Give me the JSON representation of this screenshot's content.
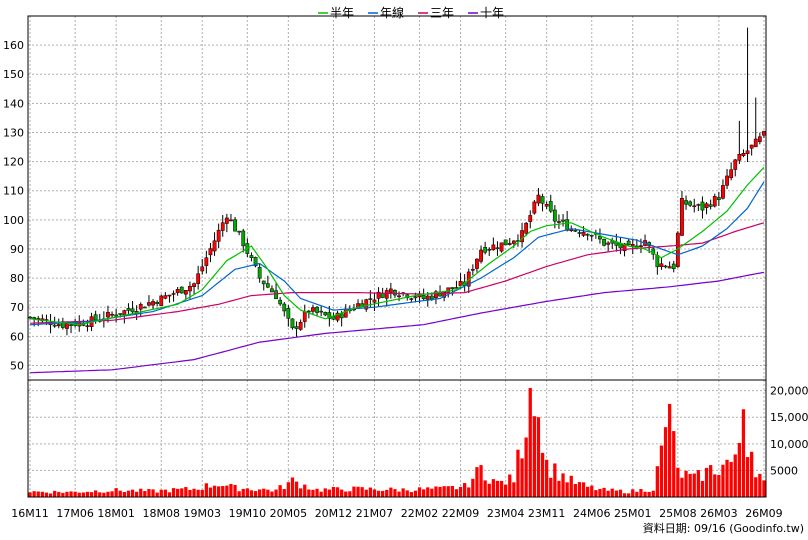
{
  "legend": [
    {
      "label": "半年",
      "color": "#00c000"
    },
    {
      "label": "年線",
      "color": "#0066cc"
    },
    {
      "label": "三年",
      "color": "#cc0066"
    },
    {
      "label": "十年",
      "color": "#7700cc"
    }
  ],
  "source_note": "資料日期: 09/16 (Goodinfo.tw)",
  "colors": {
    "up_candle": "#ff0000",
    "down_candle": "#00aa00",
    "volume_bar": "#ff0000",
    "grid": "#b0b0b0",
    "frame": "#000000"
  },
  "chart_data": [
    {
      "type": "candlestick",
      "title": "",
      "ylim": [
        45,
        170
      ],
      "yticks": [
        50,
        60,
        70,
        80,
        90,
        100,
        110,
        120,
        130,
        140,
        150,
        160
      ],
      "grid": true,
      "legend_position": "top-center",
      "x": [
        "16M11",
        "17M06",
        "18M01",
        "18M08",
        "19M03",
        "19M10",
        "20M05",
        "20M12",
        "21M07",
        "22M02",
        "22M09",
        "23M04",
        "23M11",
        "24M06",
        "25M01",
        "25M08",
        "26M03",
        "26M09"
      ],
      "price_keyframes": [
        [
          0,
          66.5
        ],
        [
          8,
          64
        ],
        [
          14,
          65
        ],
        [
          24,
          69
        ],
        [
          32,
          73
        ],
        [
          40,
          78
        ],
        [
          44,
          90
        ],
        [
          48,
          102
        ],
        [
          52,
          92
        ],
        [
          56,
          80
        ],
        [
          60,
          74
        ],
        [
          64,
          62
        ],
        [
          68,
          69
        ],
        [
          74,
          66
        ],
        [
          80,
          71
        ],
        [
          88,
          76
        ],
        [
          96,
          73
        ],
        [
          106,
          78
        ],
        [
          110,
          90
        ],
        [
          116,
          92
        ],
        [
          120,
          95
        ],
        [
          124,
          108
        ],
        [
          128,
          100
        ],
        [
          132,
          97
        ],
        [
          136,
          96
        ],
        [
          140,
          92
        ],
        [
          146,
          90
        ],
        [
          150,
          93
        ],
        [
          153,
          85
        ],
        [
          157,
          84
        ],
        [
          159,
          106
        ],
        [
          164,
          104
        ],
        [
          168,
          108
        ],
        [
          172,
          120
        ],
        [
          176,
          125
        ],
        [
          179,
          129
        ]
      ],
      "ma_half_year_keyframes": [
        [
          0,
          66
        ],
        [
          12,
          64
        ],
        [
          24,
          67.5
        ],
        [
          36,
          71
        ],
        [
          42,
          76
        ],
        [
          48,
          86
        ],
        [
          54,
          91
        ],
        [
          58,
          83
        ],
        [
          62,
          74
        ],
        [
          66,
          69
        ],
        [
          72,
          66
        ],
        [
          80,
          70
        ],
        [
          94,
          74
        ],
        [
          104,
          76
        ],
        [
          112,
          85
        ],
        [
          118,
          91
        ],
        [
          122,
          96
        ],
        [
          126,
          98
        ],
        [
          132,
          99
        ],
        [
          140,
          94
        ],
        [
          146,
          91
        ],
        [
          150,
          90
        ],
        [
          154,
          87
        ],
        [
          158,
          90
        ],
        [
          164,
          96
        ],
        [
          170,
          103
        ],
        [
          175,
          112
        ],
        [
          179,
          118
        ]
      ],
      "ma_year_keyframes": [
        [
          0,
          64
        ],
        [
          14,
          65
        ],
        [
          30,
          68.5
        ],
        [
          42,
          74
        ],
        [
          50,
          83
        ],
        [
          56,
          85
        ],
        [
          62,
          79
        ],
        [
          66,
          73
        ],
        [
          74,
          69
        ],
        [
          84,
          70
        ],
        [
          100,
          73
        ],
        [
          110,
          80
        ],
        [
          118,
          87
        ],
        [
          124,
          94
        ],
        [
          132,
          97
        ],
        [
          140,
          95
        ],
        [
          148,
          93
        ],
        [
          154,
          90
        ],
        [
          158,
          88
        ],
        [
          164,
          91
        ],
        [
          170,
          97
        ],
        [
          175,
          104
        ],
        [
          179,
          113
        ]
      ],
      "ma_three_year_keyframes": [
        [
          0,
          64.5
        ],
        [
          20,
          65.5
        ],
        [
          36,
          68.5
        ],
        [
          46,
          71
        ],
        [
          54,
          74
        ],
        [
          64,
          75
        ],
        [
          80,
          75
        ],
        [
          96,
          74.5
        ],
        [
          106,
          75
        ],
        [
          116,
          79
        ],
        [
          126,
          84
        ],
        [
          136,
          88
        ],
        [
          146,
          90
        ],
        [
          156,
          91
        ],
        [
          164,
          92
        ],
        [
          172,
          96
        ],
        [
          179,
          99
        ]
      ],
      "ma_ten_year_keyframes": [
        [
          0,
          47.5
        ],
        [
          20,
          48.5
        ],
        [
          40,
          52
        ],
        [
          56,
          58
        ],
        [
          72,
          61
        ],
        [
          96,
          64
        ],
        [
          110,
          68
        ],
        [
          126,
          72
        ],
        [
          140,
          75
        ],
        [
          156,
          77
        ],
        [
          168,
          79
        ],
        [
          179,
          82
        ]
      ],
      "spikes": [
        {
          "index": 175,
          "high": 166
        },
        {
          "index": 177,
          "high": 142
        },
        {
          "index": 173,
          "high": 134
        }
      ]
    },
    {
      "type": "bar",
      "title": "",
      "ylim": [
        0,
        22000
      ],
      "yticks": [
        5000,
        10000,
        15000,
        20000
      ],
      "ytick_labels": [
        "5000",
        "10,000",
        "15,000",
        "20,000"
      ],
      "keyframes": [
        [
          0,
          1200
        ],
        [
          10,
          1100
        ],
        [
          20,
          1500
        ],
        [
          30,
          1300
        ],
        [
          40,
          1800
        ],
        [
          46,
          3000
        ],
        [
          50,
          2000
        ],
        [
          60,
          1500
        ],
        [
          64,
          3500
        ],
        [
          70,
          1600
        ],
        [
          80,
          1800
        ],
        [
          90,
          1600
        ],
        [
          100,
          1800
        ],
        [
          106,
          2300
        ],
        [
          110,
          6000
        ],
        [
          114,
          3000
        ],
        [
          118,
          4000
        ],
        [
          122,
          20500
        ],
        [
          124,
          15000
        ],
        [
          126,
          7000
        ],
        [
          132,
          3500
        ],
        [
          136,
          2200
        ],
        [
          140,
          1500
        ],
        [
          146,
          1200
        ],
        [
          152,
          1800
        ],
        [
          156,
          17500
        ],
        [
          158,
          5500
        ],
        [
          162,
          4000
        ],
        [
          166,
          6000
        ],
        [
          170,
          7000
        ],
        [
          172,
          8000
        ],
        [
          174,
          16500
        ],
        [
          176,
          8500
        ],
        [
          179,
          3000
        ]
      ]
    }
  ]
}
